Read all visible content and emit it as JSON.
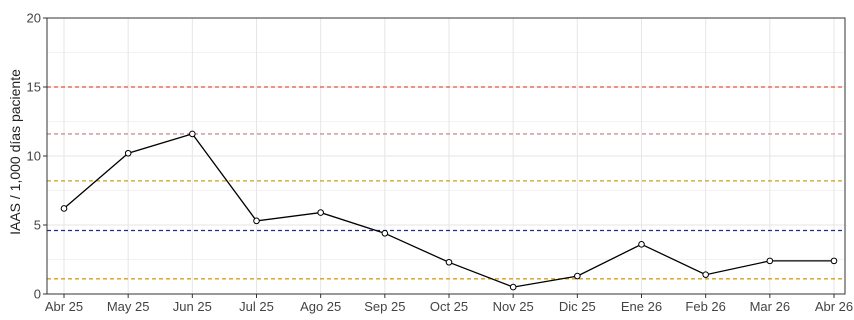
{
  "chart_data": {
    "type": "line",
    "ylabel": "IAAS / 1,000 días paciente",
    "xlabel": "",
    "categories": [
      "Abr 25",
      "May 25",
      "Jun 25",
      "Jul 25",
      "Ago 25",
      "Sep 25",
      "Oct 25",
      "Nov 25",
      "Dic 25",
      "Ene 26",
      "Feb 26",
      "Mar 26",
      "Abr 26"
    ],
    "values": [
      6.2,
      10.2,
      11.6,
      5.3,
      5.9,
      4.4,
      2.3,
      0.5,
      1.3,
      3.6,
      1.4,
      2.4,
      2.4
    ],
    "ylim": [
      0,
      20
    ],
    "yticks": [
      0,
      5,
      10,
      15,
      20
    ],
    "grid": true,
    "line_color": "#000000",
    "reference_lines": [
      {
        "value": 15.0,
        "color": "#e0533a"
      },
      {
        "value": 11.6,
        "color": "#cc8f92"
      },
      {
        "value": 8.2,
        "color": "#c5a21a"
      },
      {
        "value": 4.6,
        "color": "#1f2a8a"
      },
      {
        "value": 1.1,
        "color": "#d4a017"
      }
    ]
  }
}
